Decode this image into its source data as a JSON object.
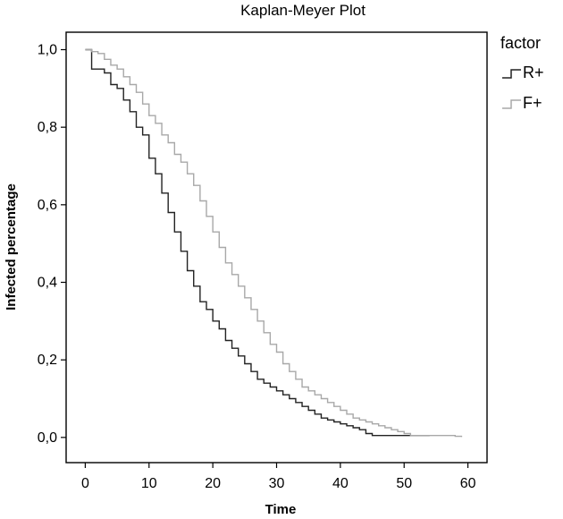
{
  "chart_data": {
    "type": "line",
    "title": "Kaplan-Meyer Plot",
    "xlabel": "Time",
    "ylabel": "Infected percentage",
    "xlim": [
      -3,
      63
    ],
    "ylim": [
      -0.065,
      1.045
    ],
    "x_ticks": [
      "0",
      "10",
      "20",
      "30",
      "40",
      "50",
      "60"
    ],
    "y_ticks": [
      "0,0",
      "0,2",
      "0,4",
      "0,6",
      "0,8",
      "1,0"
    ],
    "x_tick_values": [
      0,
      10,
      20,
      30,
      40,
      50,
      60
    ],
    "y_tick_values": [
      0,
      0.2,
      0.4,
      0.6,
      0.8,
      1.0
    ],
    "grid": false,
    "legend": {
      "title": "factor",
      "position": "right"
    },
    "series": [
      {
        "name": "R+",
        "color": "#222222",
        "step": true,
        "points": [
          [
            0,
            1.0
          ],
          [
            1,
            0.97
          ],
          [
            1,
            0.95
          ],
          [
            3,
            0.94
          ],
          [
            4,
            0.91
          ],
          [
            5,
            0.9
          ],
          [
            6,
            0.87
          ],
          [
            7,
            0.84
          ],
          [
            8,
            0.8
          ],
          [
            9,
            0.78
          ],
          [
            10,
            0.72
          ],
          [
            11,
            0.68
          ],
          [
            12,
            0.63
          ],
          [
            13,
            0.58
          ],
          [
            14,
            0.53
          ],
          [
            15,
            0.48
          ],
          [
            16,
            0.43
          ],
          [
            17,
            0.39
          ],
          [
            18,
            0.35
          ],
          [
            19,
            0.33
          ],
          [
            20,
            0.3
          ],
          [
            21,
            0.28
          ],
          [
            22,
            0.25
          ],
          [
            23,
            0.23
          ],
          [
            24,
            0.21
          ],
          [
            25,
            0.19
          ],
          [
            26,
            0.17
          ],
          [
            27,
            0.15
          ],
          [
            28,
            0.14
          ],
          [
            29,
            0.13
          ],
          [
            30,
            0.12
          ],
          [
            31,
            0.11
          ],
          [
            32,
            0.1
          ],
          [
            33,
            0.09
          ],
          [
            34,
            0.08
          ],
          [
            35,
            0.07
          ],
          [
            36,
            0.06
          ],
          [
            37,
            0.05
          ],
          [
            38,
            0.045
          ],
          [
            39,
            0.04
          ],
          [
            40,
            0.035
          ],
          [
            41,
            0.03
          ],
          [
            42,
            0.025
          ],
          [
            43,
            0.02
          ],
          [
            44,
            0.01
          ],
          [
            45,
            0.005
          ],
          [
            54,
            0.005
          ]
        ]
      },
      {
        "name": "F+",
        "color": "#a8a8a8",
        "step": true,
        "points": [
          [
            0,
            1.0
          ],
          [
            1,
            0.995
          ],
          [
            2,
            0.99
          ],
          [
            3,
            0.975
          ],
          [
            4,
            0.96
          ],
          [
            5,
            0.95
          ],
          [
            6,
            0.93
          ],
          [
            7,
            0.91
          ],
          [
            8,
            0.89
          ],
          [
            9,
            0.86
          ],
          [
            10,
            0.83
          ],
          [
            11,
            0.81
          ],
          [
            12,
            0.78
          ],
          [
            13,
            0.76
          ],
          [
            14,
            0.73
          ],
          [
            15,
            0.71
          ],
          [
            16,
            0.68
          ],
          [
            17,
            0.65
          ],
          [
            18,
            0.61
          ],
          [
            19,
            0.57
          ],
          [
            20,
            0.53
          ],
          [
            21,
            0.49
          ],
          [
            22,
            0.45
          ],
          [
            23,
            0.42
          ],
          [
            24,
            0.39
          ],
          [
            25,
            0.36
          ],
          [
            26,
            0.33
          ],
          [
            27,
            0.3
          ],
          [
            28,
            0.27
          ],
          [
            29,
            0.24
          ],
          [
            30,
            0.22
          ],
          [
            31,
            0.19
          ],
          [
            32,
            0.17
          ],
          [
            33,
            0.15
          ],
          [
            34,
            0.13
          ],
          [
            35,
            0.12
          ],
          [
            36,
            0.11
          ],
          [
            37,
            0.1
          ],
          [
            38,
            0.09
          ],
          [
            39,
            0.08
          ],
          [
            40,
            0.07
          ],
          [
            41,
            0.06
          ],
          [
            42,
            0.05
          ],
          [
            43,
            0.045
          ],
          [
            44,
            0.04
          ],
          [
            45,
            0.035
          ],
          [
            46,
            0.03
          ],
          [
            47,
            0.025
          ],
          [
            48,
            0.02
          ],
          [
            49,
            0.015
          ],
          [
            50,
            0.01
          ],
          [
            51,
            0.005
          ],
          [
            58,
            0.003
          ],
          [
            59,
            0.001
          ]
        ]
      }
    ]
  }
}
